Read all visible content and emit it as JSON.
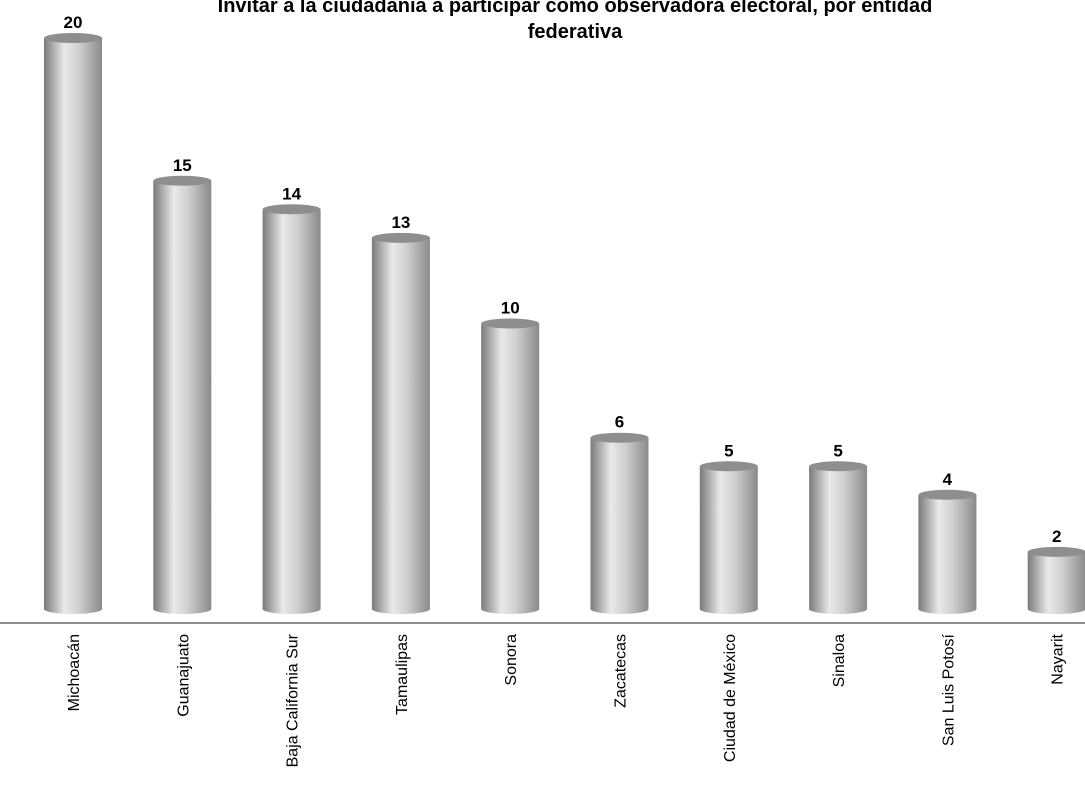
{
  "chart_data": {
    "type": "bar",
    "title_lines": [
      "Invitar a la ciudadanía a participar como observadora electoral, por entidad",
      "federativa"
    ],
    "categories": [
      "Michoacán",
      "Guanajuato",
      "Baja California Sur",
      "Tamaulipas",
      "Sonora",
      "Zacatecas",
      "Ciudad de México",
      "Sinaloa",
      "San Luis Potosí",
      "Nayarit"
    ],
    "values": [
      20,
      15,
      14,
      13,
      10,
      6,
      5,
      5,
      4,
      2
    ],
    "xlabel": "",
    "ylabel": "",
    "ylim": [
      0,
      20
    ],
    "grid": false,
    "legend": "none",
    "bar_style": "cylinder",
    "colors": {
      "bar_light": "#e9e9e9",
      "bar_mid": "#bdbdbd",
      "bar_dark": "#7a7a7a",
      "bar_top": "#8e8e8e",
      "axis": "#8c8c8c",
      "text": "#000000"
    }
  }
}
